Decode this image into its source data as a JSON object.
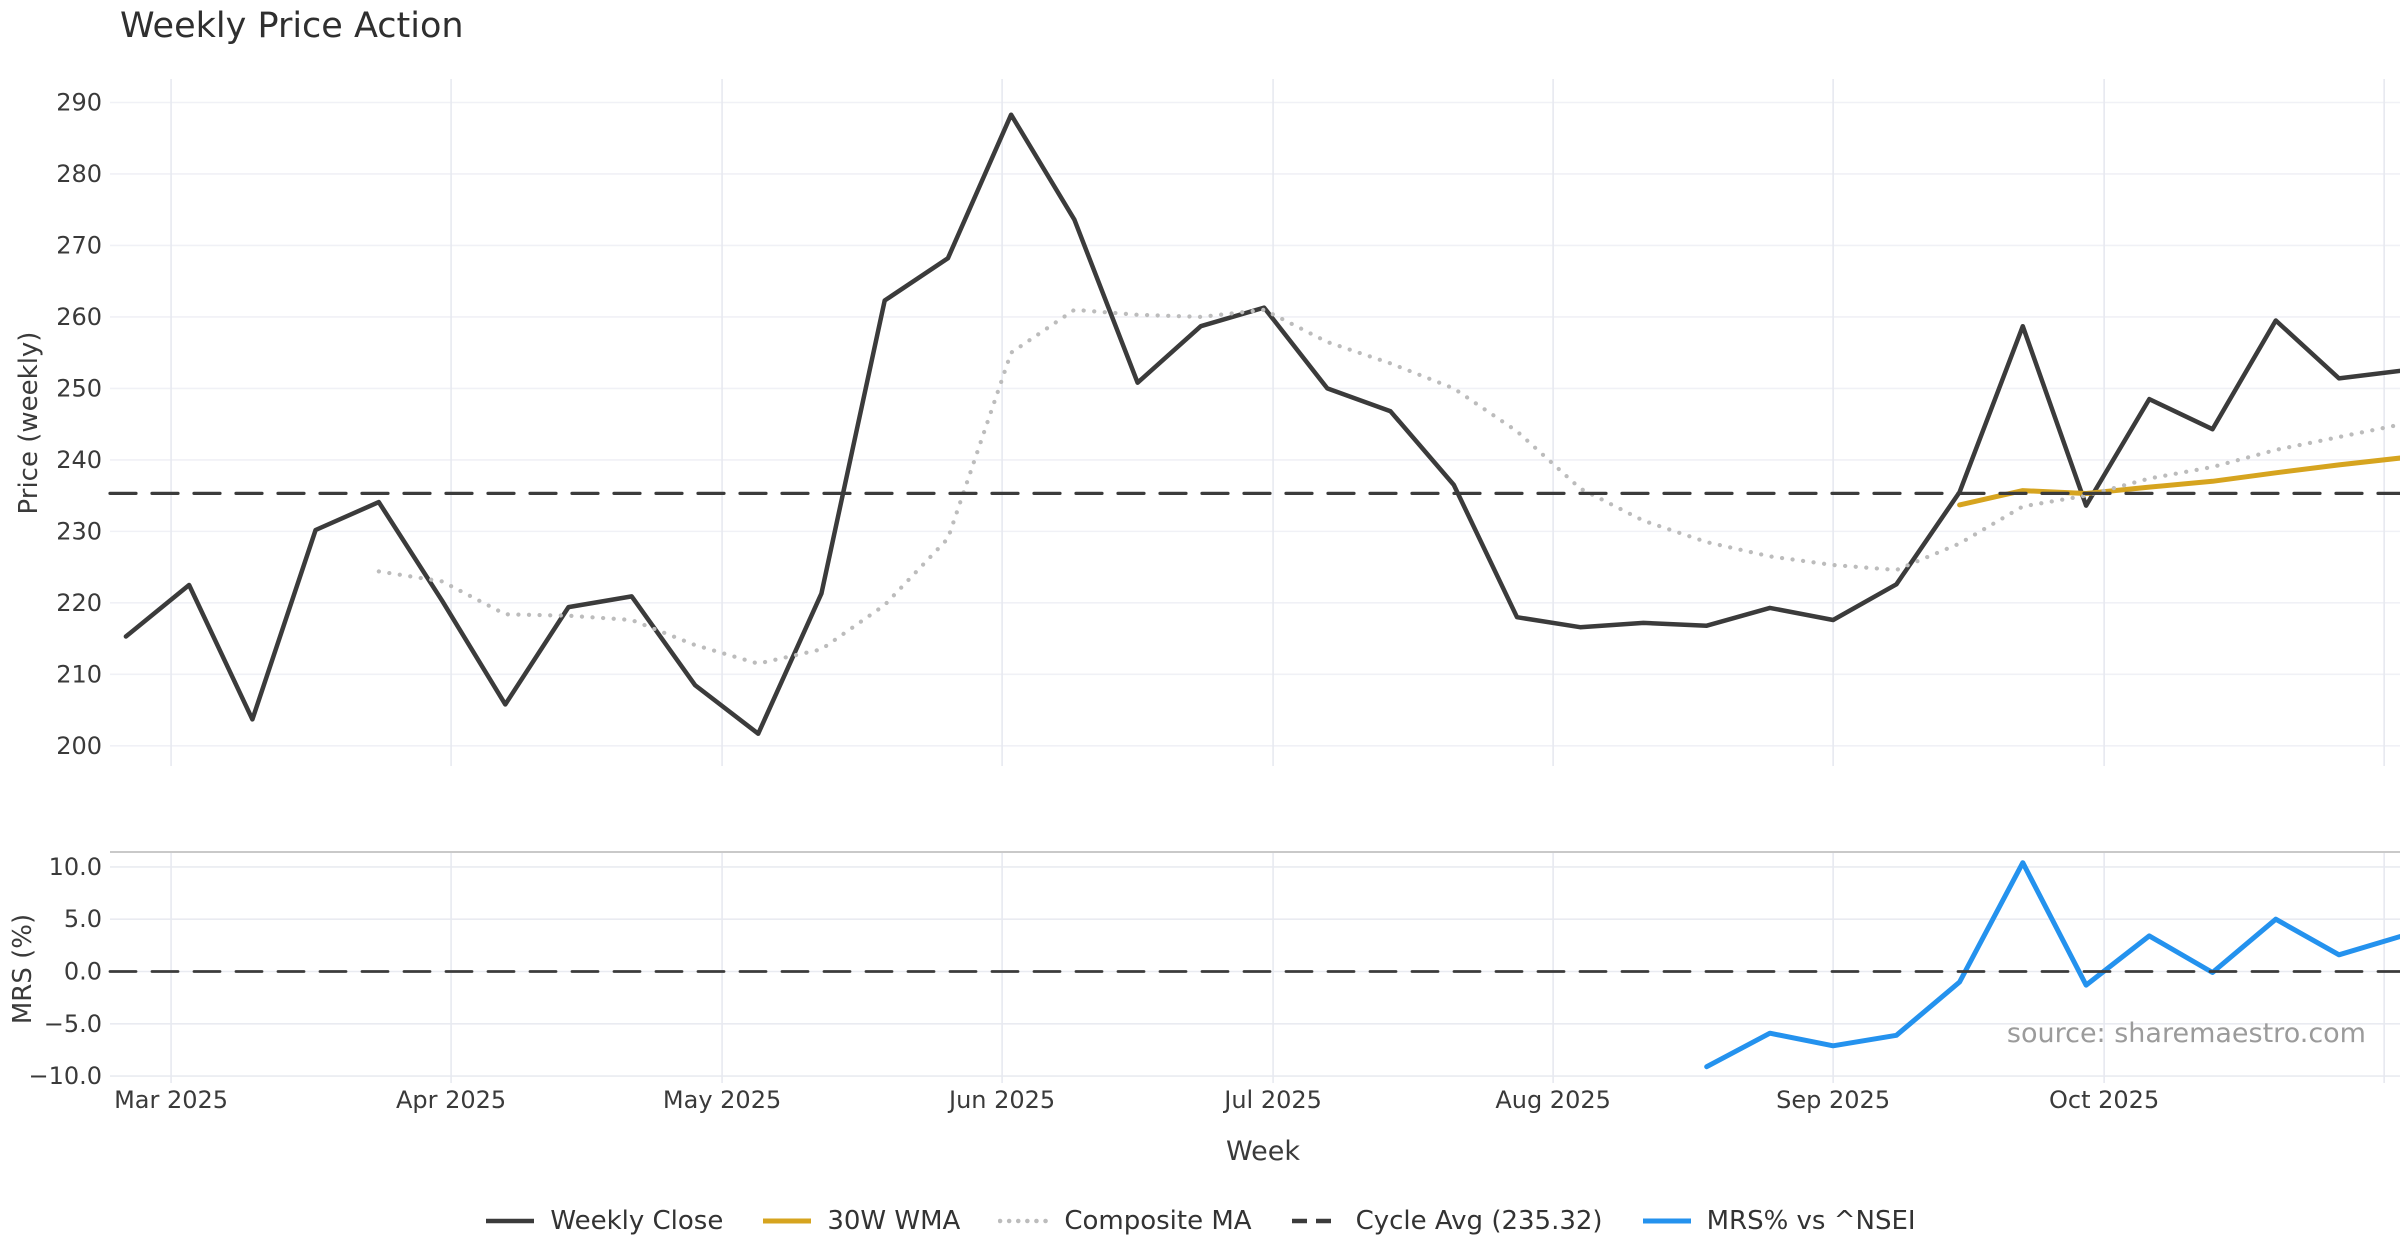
{
  "title": "Weekly Price Action",
  "source_note": "source: sharemaestro.com",
  "x_axis": {
    "label": "Week",
    "weekly_dates": [
      "2025-02-24",
      "2025-03-03",
      "2025-03-10",
      "2025-03-17",
      "2025-03-24",
      "2025-03-31",
      "2025-04-07",
      "2025-04-14",
      "2025-04-21",
      "2025-04-28",
      "2025-05-05",
      "2025-05-12",
      "2025-05-19",
      "2025-05-26",
      "2025-06-02",
      "2025-06-09",
      "2025-06-16",
      "2025-06-23",
      "2025-06-30",
      "2025-07-07",
      "2025-07-14",
      "2025-07-21",
      "2025-07-28",
      "2025-08-04",
      "2025-08-11",
      "2025-08-18",
      "2025-08-25",
      "2025-09-01",
      "2025-09-08",
      "2025-09-15",
      "2025-09-22",
      "2025-09-29",
      "2025-10-06",
      "2025-10-13",
      "2025-10-20",
      "2025-10-27",
      "2025-11-03"
    ],
    "months": [
      {
        "label": "Mar 2025",
        "date": "2025-03-01"
      },
      {
        "label": "Apr 2025",
        "date": "2025-04-01"
      },
      {
        "label": "May 2025",
        "date": "2025-05-01"
      },
      {
        "label": "Jun 2025",
        "date": "2025-06-01"
      },
      {
        "label": "Jul 2025",
        "date": "2025-07-01"
      },
      {
        "label": "Aug 2025",
        "date": "2025-08-01"
      },
      {
        "label": "Sep 2025",
        "date": "2025-09-01"
      },
      {
        "label": "Oct 2025",
        "date": "2025-10-01"
      },
      {
        "label": "",
        "date": "2025-11-01"
      }
    ]
  },
  "chart_data": [
    {
      "panel": "price",
      "type": "line",
      "ylabel": "Price (weekly)",
      "ylim": [
        197,
        293.5
      ],
      "grid": true,
      "legend_position": "bottom-center",
      "yticks": [
        {
          "v": 290,
          "label": "290"
        },
        {
          "v": 280,
          "label": "280"
        },
        {
          "v": 270,
          "label": "270"
        },
        {
          "v": 260,
          "label": "260"
        },
        {
          "v": 250,
          "label": "250"
        },
        {
          "v": 240,
          "label": "240"
        },
        {
          "v": 230,
          "label": "230"
        },
        {
          "v": 220,
          "label": "220"
        },
        {
          "v": 210,
          "label": "210"
        },
        {
          "v": 200,
          "label": "200"
        }
      ],
      "series": [
        {
          "name": "Weekly Close",
          "color": "#3b3b3b",
          "style": "solid",
          "width": 4.5,
          "in_legend": true,
          "values": [
            215.3,
            222.5,
            203.7,
            230.2,
            234.1,
            220.3,
            205.8,
            219.4,
            220.9,
            208.5,
            201.7,
            221.3,
            262.3,
            268.2,
            288.3,
            273.6,
            250.8,
            258.7,
            261.3,
            250.0,
            246.8,
            236.5,
            218.0,
            216.6,
            217.2,
            216.8,
            219.3,
            217.6,
            222.6,
            235.5,
            258.7,
            233.6,
            248.5,
            244.3,
            259.5,
            251.4,
            252.5
          ]
        },
        {
          "name": "30W WMA",
          "color": "#d6a41f",
          "style": "solid",
          "width": 5,
          "in_legend": true,
          "values": [
            null,
            null,
            null,
            null,
            null,
            null,
            null,
            null,
            null,
            null,
            null,
            null,
            null,
            null,
            null,
            null,
            null,
            null,
            null,
            null,
            null,
            null,
            null,
            null,
            null,
            null,
            null,
            null,
            null,
            233.7,
            235.7,
            235.3,
            236.2,
            237.0,
            238.2,
            239.3,
            240.3
          ]
        },
        {
          "name": "Composite MA",
          "color": "#bcbcbc",
          "style": "dotted",
          "width": 4.2,
          "in_legend": true,
          "values": [
            null,
            null,
            null,
            null,
            224.4,
            223.0,
            218.4,
            218.2,
            217.6,
            214.1,
            211.5,
            213.5,
            219.7,
            229.0,
            255.0,
            261.0,
            260.3,
            260.0,
            261.0,
            256.5,
            253.5,
            250.0,
            244.0,
            236.0,
            231.5,
            228.5,
            226.5,
            225.3,
            224.6,
            228.3,
            233.5,
            235.0,
            237.4,
            239.0,
            241.4,
            243.2,
            245.0
          ]
        },
        {
          "name": "Cycle Avg (235.32)",
          "color": "#3b3b3b",
          "style": "dashed",
          "width": 3.2,
          "in_legend": true,
          "constant": 235.32
        }
      ]
    },
    {
      "panel": "mrs",
      "type": "line",
      "ylabel": "MRS (%)",
      "ylim": [
        -11.7,
        11.7
      ],
      "grid": true,
      "yticks": [
        {
          "v": 10,
          "label": "10.0"
        },
        {
          "v": 5,
          "label": "5.0"
        },
        {
          "v": 0,
          "label": "0.0"
        },
        {
          "v": -5,
          "label": "−5.0"
        },
        {
          "v": -10,
          "label": "−10.0"
        }
      ],
      "series": [
        {
          "name": "MRS% vs ^NSEI",
          "color": "#2492ee",
          "style": "solid",
          "width": 5,
          "in_legend": true,
          "values": [
            null,
            null,
            null,
            null,
            null,
            null,
            null,
            null,
            null,
            null,
            null,
            null,
            null,
            null,
            null,
            null,
            null,
            null,
            null,
            null,
            null,
            null,
            null,
            null,
            null,
            -9.1,
            -5.9,
            -7.1,
            -6.1,
            -1.0,
            10.4,
            -1.3,
            3.4,
            -0.1,
            5.0,
            1.6,
            3.4
          ]
        },
        {
          "name": "Zero line",
          "color": "#3b3b3b",
          "style": "dashed",
          "width": 2.8,
          "in_legend": false,
          "constant": 0
        }
      ]
    }
  ]
}
